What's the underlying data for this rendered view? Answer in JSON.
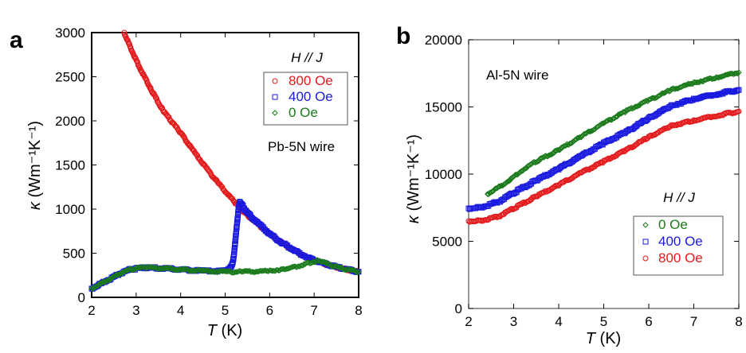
{
  "chart_data": [
    {
      "type": "scatter",
      "panel_label": "a",
      "title": "",
      "xlabel_var": "T",
      "xlabel_unit": " (K)",
      "ylabel_var": "κ",
      "ylabel_unit": " (Wm⁻¹K⁻¹)",
      "xlim": [
        2,
        8
      ],
      "ylim": [
        0,
        3000
      ],
      "xticks": [
        2,
        3,
        4,
        5,
        6,
        7,
        8
      ],
      "yticks": [
        0,
        500,
        1000,
        1500,
        2000,
        2500,
        3000
      ],
      "grid": false,
      "annotation": "Pb-5N wire",
      "legend_title": "H // J",
      "legend_placement": "top-right",
      "series": [
        {
          "name": "800 Oe",
          "color": "#e31a1c",
          "marker": "circle",
          "x": [
            2.73,
            2.9,
            3.1,
            3.34,
            3.6,
            3.8,
            4.0,
            4.3,
            4.6,
            4.9,
            5.26,
            5.5,
            5.8,
            6.1,
            6.4,
            6.7,
            7.0,
            7.3,
            7.6,
            8.0
          ],
          "y": [
            3000,
            2800,
            2580,
            2350,
            2120,
            1990,
            1865,
            1650,
            1450,
            1260,
            1054,
            930,
            800,
            680,
            580,
            490,
            420,
            370,
            330,
            290
          ]
        },
        {
          "name": "400 Oe",
          "color": "#1a1adf",
          "marker": "square",
          "x": [
            2.0,
            2.3,
            2.6,
            2.9,
            3.2,
            3.6,
            4.0,
            4.5,
            5.0,
            5.1,
            5.15,
            5.18,
            5.2,
            5.22,
            5.24,
            5.26,
            5.28,
            5.3,
            5.33,
            5.5,
            5.8,
            6.1,
            6.4,
            6.7,
            7.0,
            7.3,
            7.6,
            8.0
          ],
          "y": [
            100,
            180,
            260,
            320,
            335,
            330,
            315,
            300,
            300,
            320,
            360,
            420,
            500,
            600,
            700,
            800,
            900,
            1000,
            1080,
            960,
            810,
            680,
            580,
            490,
            420,
            370,
            330,
            290
          ]
        },
        {
          "name": "0 Oe",
          "color": "#1b7a1b",
          "marker": "diamond",
          "x": [
            2.0,
            2.3,
            2.6,
            2.9,
            3.2,
            3.6,
            4.0,
            4.5,
            5.0,
            5.5,
            6.0,
            6.3,
            6.6,
            6.9,
            7.1,
            7.4,
            7.7,
            8.0
          ],
          "y": [
            100,
            180,
            260,
            320,
            340,
            330,
            315,
            300,
            290,
            290,
            300,
            320,
            350,
            390,
            420,
            360,
            320,
            290
          ]
        }
      ]
    },
    {
      "type": "scatter",
      "panel_label": "b",
      "title": "",
      "xlabel_var": "T",
      "xlabel_unit": " (K)",
      "ylabel_var": "κ",
      "ylabel_unit": " (Wm⁻¹K⁻¹)",
      "xlim": [
        2,
        8
      ],
      "ylim": [
        0,
        20000
      ],
      "xticks": [
        2,
        3,
        4,
        5,
        6,
        7,
        8
      ],
      "yticks": [
        0,
        5000,
        10000,
        15000,
        20000
      ],
      "grid": false,
      "annotation": "Al-5N wire",
      "legend_title": "H // J",
      "legend_placement": "bottom-right",
      "series": [
        {
          "name": "0 Oe",
          "color": "#1b7a1b",
          "marker": "diamond",
          "x": [
            2.42,
            2.8,
            3.2,
            3.5,
            4.0,
            4.5,
            5.0,
            5.5,
            6.0,
            6.5,
            7.0,
            7.5,
            8.0
          ],
          "y": [
            8520,
            9300,
            10300,
            10940,
            11800,
            12800,
            13780,
            14700,
            15500,
            16270,
            16800,
            17200,
            17570
          ]
        },
        {
          "name": "400 Oe",
          "color": "#1a1adf",
          "marker": "square",
          "x": [
            2.0,
            2.3,
            2.7,
            3.0,
            3.5,
            4.0,
            4.5,
            5.0,
            5.5,
            6.0,
            6.5,
            7.0,
            7.5,
            8.0
          ],
          "y": [
            7450,
            7550,
            8000,
            8600,
            9530,
            10400,
            11350,
            12300,
            13150,
            14150,
            15090,
            15600,
            15950,
            16270
          ]
        },
        {
          "name": "800 Oe",
          "color": "#e31a1c",
          "marker": "circle",
          "x": [
            2.0,
            2.3,
            2.7,
            3.0,
            3.5,
            4.0,
            4.5,
            5.0,
            5.5,
            6.0,
            6.5,
            7.0,
            7.5,
            8.0
          ],
          "y": [
            6500,
            6550,
            6900,
            7450,
            8340,
            9200,
            10100,
            10940,
            11800,
            12750,
            13610,
            14000,
            14350,
            14670
          ]
        }
      ]
    }
  ]
}
